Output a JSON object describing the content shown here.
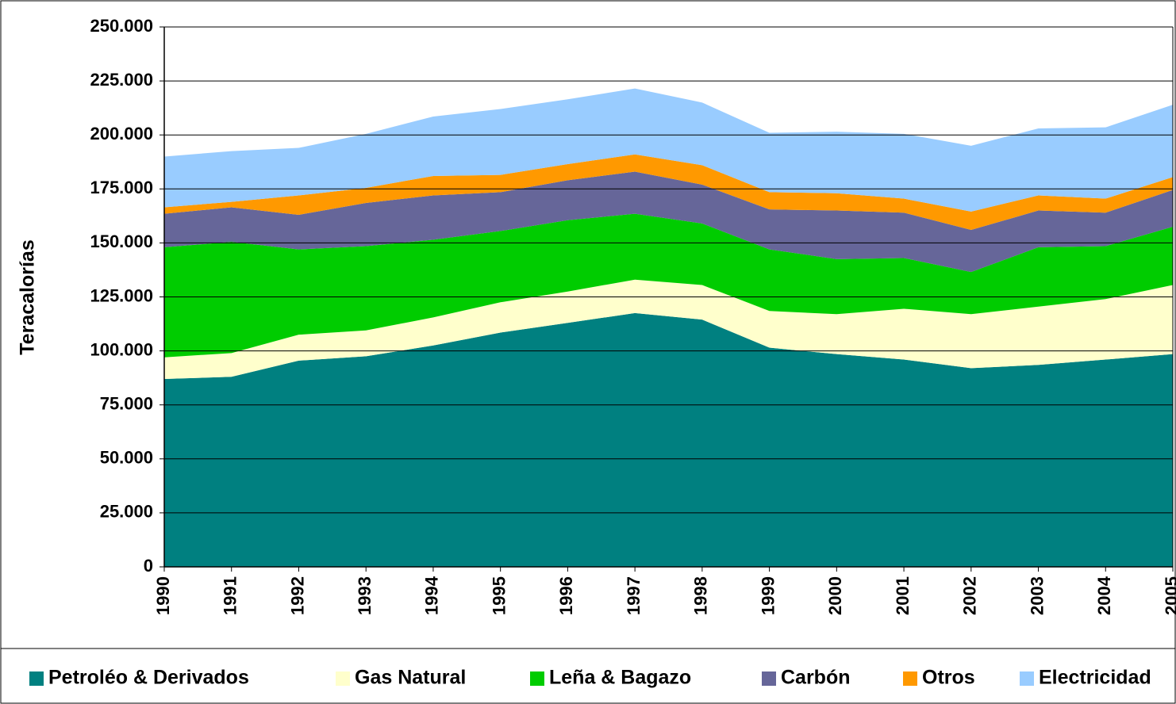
{
  "chart_data": {
    "type": "stacked_area",
    "y_label": "Teracalorías",
    "categories": [
      "1990",
      "1991",
      "1992",
      "1993",
      "1994",
      "1995",
      "1996",
      "1997",
      "1998",
      "1999",
      "2000",
      "2001",
      "2002",
      "2003",
      "2004",
      "2005"
    ],
    "series": [
      {
        "name": "Petroléo & Derivados",
        "color": "#008080",
        "values": [
          87000,
          88000,
          95500,
          97500,
          102500,
          108500,
          113000,
          117500,
          114500,
          101500,
          98500,
          96000,
          92000,
          93500,
          96000,
          98500
        ]
      },
      {
        "name": "Gas Natural",
        "color": "#ffffcc",
        "values": [
          10000,
          11000,
          12000,
          12000,
          13000,
          14000,
          14500,
          15500,
          16000,
          17000,
          18500,
          23500,
          25000,
          27000,
          28000,
          32000
        ]
      },
      {
        "name": "Leña & Bagazo",
        "color": "#00cc00",
        "values": [
          51000,
          51500,
          39500,
          39000,
          36000,
          33000,
          33000,
          30500,
          28500,
          28500,
          25500,
          23500,
          19500,
          27500,
          24500,
          27000
        ]
      },
      {
        "name": "Carbón",
        "color": "#666699",
        "values": [
          15500,
          16000,
          16000,
          20000,
          20500,
          18000,
          18500,
          19500,
          18000,
          18500,
          22500,
          21000,
          19500,
          17000,
          15500,
          17000
        ]
      },
      {
        "name": "Otros",
        "color": "#ff9900",
        "values": [
          3000,
          2500,
          9000,
          7000,
          9000,
          8000,
          7500,
          8000,
          9000,
          8000,
          8000,
          6500,
          8500,
          7000,
          6500,
          6000
        ]
      },
      {
        "name": "Electricidad",
        "color": "#99ccff",
        "values": [
          23500,
          23500,
          22000,
          25000,
          27500,
          30500,
          30000,
          30500,
          29000,
          27500,
          28500,
          30000,
          30500,
          31000,
          33000,
          33500
        ]
      }
    ],
    "ylim": [
      0,
      250000
    ],
    "yticks": [
      0,
      {
        "value": 25000,
        "label": "25.000"
      },
      {
        "value": 50000,
        "label": "50.000"
      },
      {
        "value": 75000,
        "label": "75.000"
      },
      {
        "value": 100000,
        "label": "100.000"
      },
      {
        "value": 125000,
        "label": "125.000"
      },
      {
        "value": 150000,
        "label": "150.000"
      },
      {
        "value": 175000,
        "label": "175.000"
      },
      {
        "value": 200000,
        "label": "200.000"
      },
      {
        "value": 225000,
        "label": "225.000"
      },
      {
        "value": 250000,
        "label": "250.000"
      }
    ],
    "grid": true,
    "legend": "bottom"
  }
}
